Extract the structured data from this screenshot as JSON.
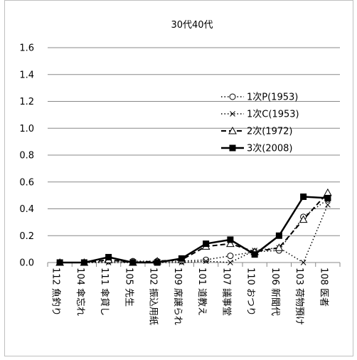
{
  "chart_data": {
    "type": "line",
    "title": "30代40代",
    "xlabel": "",
    "ylabel": "",
    "ylim": [
      0,
      1.6
    ],
    "yticks": [
      "0.0",
      "0.2",
      "0.4",
      "0.6",
      "0.8",
      "1.0",
      "1.2",
      "1.4",
      "1.6"
    ],
    "grid": true,
    "legend_position": "right",
    "categories": [
      "112 魚釣り",
      "104 傘忘れ",
      "111 傘貸し",
      "105 先生",
      "102 振込用紙",
      "109 席譲られ",
      "101 道教え",
      "107 議事堂",
      "110 おつり",
      "106 新聞代",
      "103 荷物預け",
      "108 医者"
    ],
    "series": [
      {
        "name": "1次P(1953)",
        "style": "dotted",
        "marker": "circle",
        "color": "#000000",
        "values": [
          0.0,
          0.0,
          0.01,
          0.01,
          0.01,
          0.01,
          0.02,
          0.05,
          0.08,
          0.09,
          0.34,
          0.47
        ]
      },
      {
        "name": "1次C(1953)",
        "style": "dotted",
        "marker": "x",
        "color": "#000000",
        "values": [
          0.0,
          0.0,
          0.0,
          0.0,
          0.0,
          0.0,
          0.01,
          0.0,
          0.09,
          0.11,
          0.0,
          0.43
        ]
      },
      {
        "name": "2次(1972)",
        "style": "dashed",
        "marker": "triangle",
        "color": "#000000",
        "values": [
          0.0,
          0.0,
          0.02,
          0.0,
          0.01,
          0.02,
          0.12,
          0.14,
          0.08,
          0.11,
          0.32,
          0.52
        ]
      },
      {
        "name": "3次(2008)",
        "style": "solid",
        "marker": "square",
        "color": "#000000",
        "values": [
          0.0,
          0.0,
          0.04,
          0.0,
          0.0,
          0.03,
          0.14,
          0.17,
          0.06,
          0.2,
          0.49,
          0.48
        ]
      }
    ]
  }
}
